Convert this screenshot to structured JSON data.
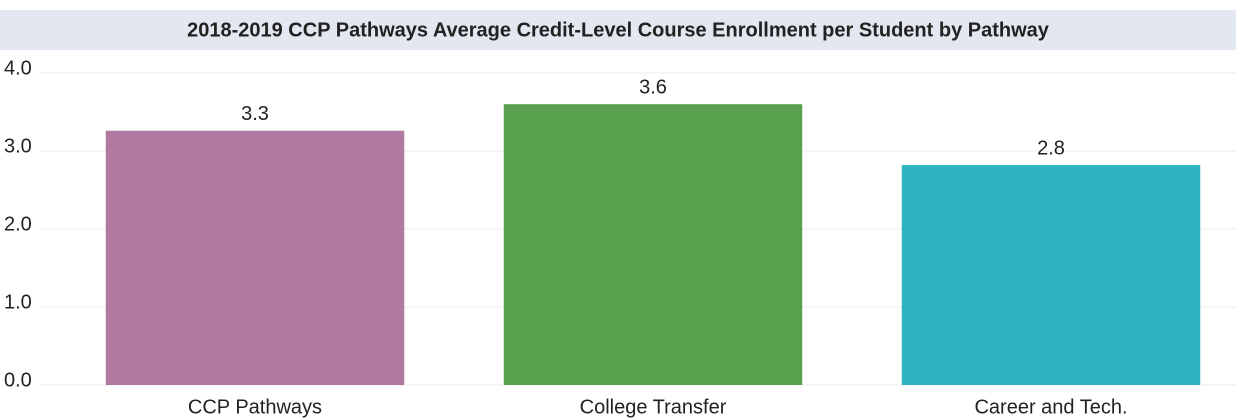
{
  "chart_data": {
    "type": "bar",
    "title": "2018-2019 CCP Pathways Average Credit-Level Course Enrollment per Student by Pathway",
    "categories": [
      "CCP Pathways",
      "College Transfer",
      "Career and Tech."
    ],
    "values": [
      3.26,
      3.6,
      2.82
    ],
    "value_labels": [
      "3.3",
      "3.6",
      "2.8"
    ],
    "colors": [
      "#b07aa1",
      "#59a14f",
      "#2db3c1"
    ],
    "ylim": [
      0,
      4
    ],
    "yticks": [
      {
        "value": 0,
        "label": "0.0"
      },
      {
        "value": 1,
        "label": "1.0"
      },
      {
        "value": 2,
        "label": "2.0"
      },
      {
        "value": 3,
        "label": "3.0"
      },
      {
        "value": 4,
        "label": "4.0"
      }
    ],
    "grid": true
  }
}
